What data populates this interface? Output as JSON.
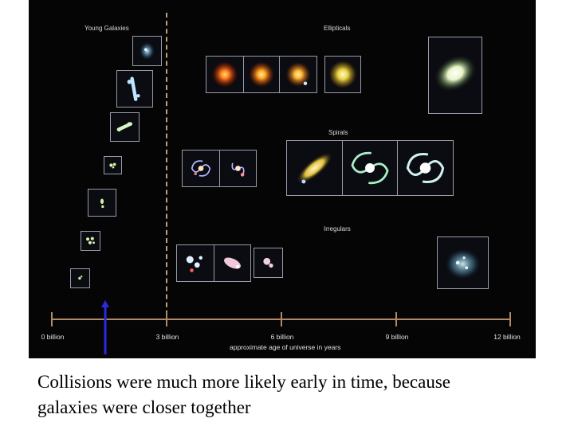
{
  "labels": {
    "young": "Young Galaxies",
    "ellipticals": "Ellipticals",
    "spirals": "Spirals",
    "irregulars": "Irregulars"
  },
  "timeline": {
    "ticks": [
      "0 billion",
      "3 billion",
      "6 billion",
      "9 billion",
      "12 billion"
    ],
    "title": "approximate age of universe in years"
  },
  "caption": {
    "line1": "Collisions were much more likely early in time, because",
    "line2": "galaxies were closer together"
  },
  "colors": {
    "background": "#050505",
    "timeline": "#b08a63",
    "dashed_divider": "#b8a27a",
    "arrow": "#2a2ae0"
  }
}
